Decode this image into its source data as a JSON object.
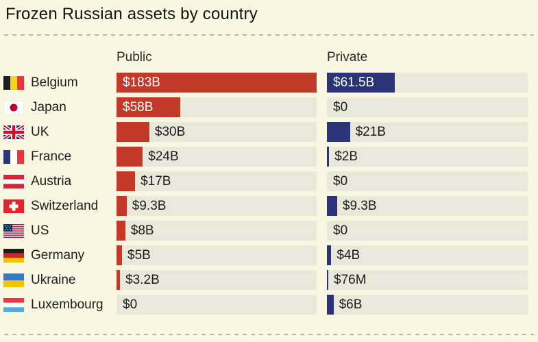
{
  "title": "Frozen Russian assets by country",
  "colors": {
    "background": "#f9f6e1",
    "track": "#eae8da",
    "public_bar": "#c2392a",
    "private_bar": "#2b3377"
  },
  "chart_data": {
    "type": "bar",
    "title": "Frozen Russian assets by country",
    "unit": "USD",
    "scale_max_billusd": 183,
    "legend_position": "column headers",
    "columns": {
      "public": "Public",
      "private": "Private"
    },
    "rows": [
      {
        "country": "Belgium",
        "flag": "belgium",
        "public": {
          "label": "$183B",
          "value": 183,
          "inside": true
        },
        "private": {
          "label": "$61.5B",
          "value": 61.5,
          "inside": true
        }
      },
      {
        "country": "Japan",
        "flag": "japan",
        "public": {
          "label": "$58B",
          "value": 58,
          "inside": true
        },
        "private": {
          "label": "$0",
          "value": 0,
          "inside": false
        }
      },
      {
        "country": "UK",
        "flag": "uk",
        "public": {
          "label": "$30B",
          "value": 30,
          "inside": false
        },
        "private": {
          "label": "$21B",
          "value": 21,
          "inside": false
        }
      },
      {
        "country": "France",
        "flag": "france",
        "public": {
          "label": "$24B",
          "value": 24,
          "inside": false
        },
        "private": {
          "label": "$2B",
          "value": 2,
          "inside": false
        }
      },
      {
        "country": "Austria",
        "flag": "austria",
        "public": {
          "label": "$17B",
          "value": 17,
          "inside": false
        },
        "private": {
          "label": "$0",
          "value": 0,
          "inside": false
        }
      },
      {
        "country": "Switzerland",
        "flag": "switzerland",
        "public": {
          "label": "$9.3B",
          "value": 9.3,
          "inside": false
        },
        "private": {
          "label": "$9.3B",
          "value": 9.3,
          "inside": false
        }
      },
      {
        "country": "US",
        "flag": "us",
        "public": {
          "label": "$8B",
          "value": 8,
          "inside": false
        },
        "private": {
          "label": "$0",
          "value": 0,
          "inside": false
        }
      },
      {
        "country": "Germany",
        "flag": "germany",
        "public": {
          "label": "$5B",
          "value": 5,
          "inside": false
        },
        "private": {
          "label": "$4B",
          "value": 4,
          "inside": false
        }
      },
      {
        "country": "Ukraine",
        "flag": "ukraine",
        "public": {
          "label": "$3.2B",
          "value": 3.2,
          "inside": false
        },
        "private": {
          "label": "$76M",
          "value": 0.076,
          "inside": false
        }
      },
      {
        "country": "Luxembourg",
        "flag": "luxembourg",
        "public": {
          "label": "$0",
          "value": 0,
          "inside": false
        },
        "private": {
          "label": "$6B",
          "value": 6,
          "inside": false
        }
      }
    ]
  }
}
